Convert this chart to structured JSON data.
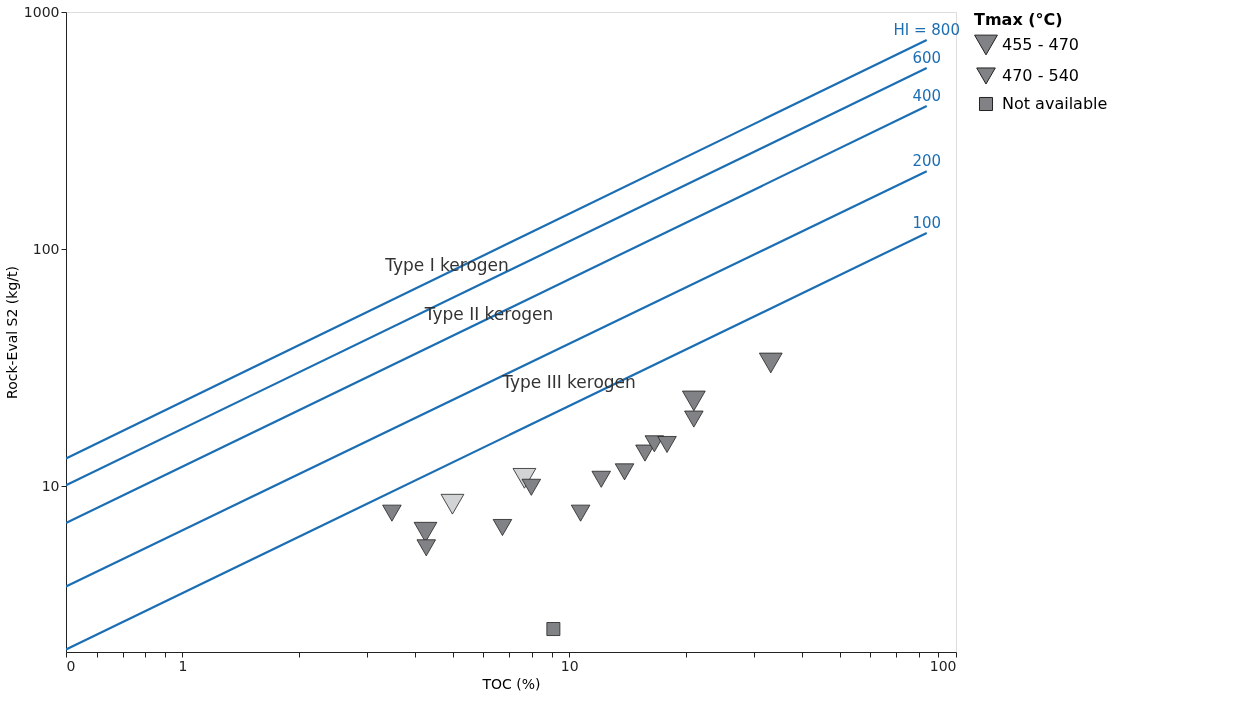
{
  "chart_data": {
    "type": "scatter",
    "xlabel": "TOC (%)",
    "ylabel": "Rock-Eval S2 (kg/t)",
    "legend_title": "Tmax (°C)",
    "log": "xy",
    "grid": false,
    "legend": "right",
    "xlim": [
      0.5,
      100
    ],
    "ylim": [
      2,
      1000
    ],
    "xticks": [
      {
        "value": 0.5,
        "label": "0"
      },
      {
        "value": 0.6,
        "label": null
      },
      {
        "value": 0.7,
        "label": null
      },
      {
        "value": 0.8,
        "label": null
      },
      {
        "value": 0.9,
        "label": null
      },
      1,
      {
        "value": 2,
        "label": null
      },
      {
        "value": 3,
        "label": null
      },
      {
        "value": 4,
        "label": null
      },
      {
        "value": 5,
        "label": null
      },
      {
        "value": 6,
        "label": null
      },
      {
        "value": 7,
        "label": null
      },
      {
        "value": 8,
        "label": null
      },
      {
        "value": 9,
        "label": null
      },
      10,
      {
        "value": 20,
        "label": null
      },
      {
        "value": 30,
        "label": null
      },
      {
        "value": 40,
        "label": null
      },
      {
        "value": 50,
        "label": null
      },
      {
        "value": 60,
        "label": null
      },
      {
        "value": 70,
        "label": null
      },
      {
        "value": 80,
        "label": null
      },
      {
        "value": 90,
        "label": null
      },
      100
    ],
    "yticks": [
      10,
      100,
      1000
    ],
    "series": [
      {
        "name": "HI = 800",
        "type": "line",
        "color": "#1b6eb3",
        "x": [
          0.5,
          84
        ],
        "values": [
          13.1,
          762
        ]
      },
      {
        "name": "600",
        "type": "line",
        "color": "#1b6eb3",
        "x": [
          0.5,
          84
        ],
        "values": [
          10.1,
          580
        ]
      },
      {
        "name": "400",
        "type": "line",
        "color": "#1b6eb3",
        "x": [
          0.5,
          84
        ],
        "values": [
          7.0,
          401
        ]
      },
      {
        "name": "200",
        "type": "line",
        "color": "#1b6eb3",
        "x": [
          0.5,
          84
        ],
        "values": [
          3.78,
          213
        ]
      },
      {
        "name": "100",
        "type": "line",
        "color": "#1b6eb3",
        "x": [
          0.5,
          84
        ],
        "values": [
          2.05,
          117
        ]
      },
      {
        "name": "455 - 470",
        "marker": "triangle",
        "x": [
          33.2,
          21.0,
          7.66,
          4.99,
          4.25
        ],
        "values": [
          33.1,
          22.9,
          10.8,
          8.4,
          6.4
        ],
        "colors": [
          "#808285",
          "#808285",
          "#d1d3d4",
          "#d1d3d4",
          "#808285"
        ]
      },
      {
        "name": "470 - 540",
        "marker": "triangle",
        "x": [
          3.48,
          4.27,
          6.72,
          7.98,
          10.7,
          12.1,
          13.9,
          15.7,
          16.6,
          17.9,
          21.0
        ],
        "values": [
          7.7,
          5.5,
          6.7,
          9.9,
          7.7,
          10.7,
          11.5,
          13.8,
          15.1,
          15.0,
          19.2
        ],
        "color": "#808285"
      },
      {
        "name": "Not available",
        "marker": "square",
        "x": [
          9.1
        ],
        "values": [
          2.5
        ],
        "color": "#808285"
      }
    ],
    "annotations": [
      "Type I kerogen",
      "Type II kerogen",
      "Type III kerogen"
    ]
  }
}
